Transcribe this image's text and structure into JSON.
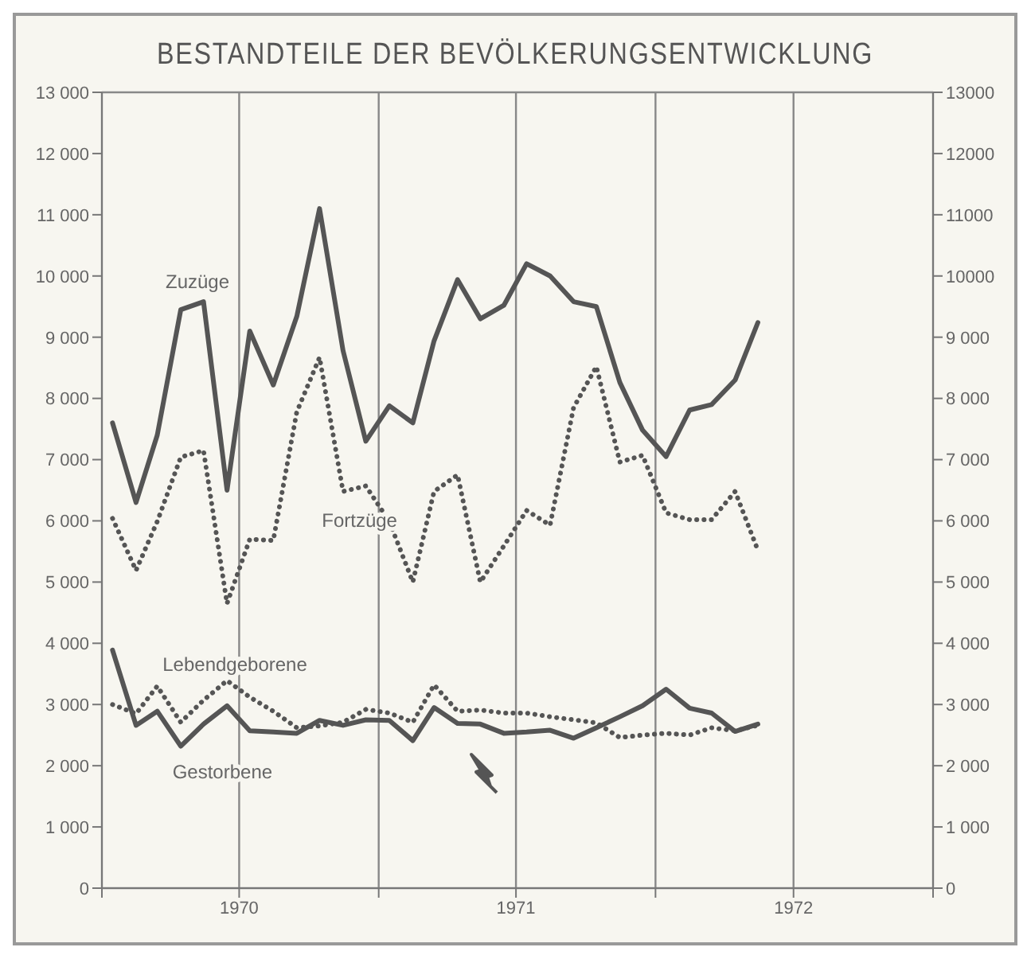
{
  "chart_data": {
    "type": "line",
    "title": "BESTANDTEILE DER BEVÖLKERUNGSENTWICKLUNG",
    "x": [
      "1970-01-15",
      "1970-02-15",
      "1970-03-15",
      "1970-04-15",
      "1970-05-15",
      "1970-06-15",
      "1970-07-15",
      "1970-08-15",
      "1970-09-15",
      "1970-10-15",
      "1970-11-15",
      "1970-12-15",
      "1971-01-15",
      "1971-02-15",
      "1971-03-15",
      "1971-04-15",
      "1971-05-15",
      "1971-06-15",
      "1971-07-15",
      "1971-08-15",
      "1971-09-15",
      "1971-10-15",
      "1971-11-15",
      "1971-12-15",
      "1972-01-15",
      "1972-02-15",
      "1972-03-15",
      "1972-04-15",
      "1972-05-15"
    ],
    "series": [
      {
        "name": "Zuzüge",
        "color": "#555555",
        "line_style": "solid",
        "values": [
          7600,
          6300,
          7400,
          9450,
          9580,
          6500,
          9100,
          8220,
          9340,
          11100,
          8780,
          7300,
          7880,
          7600,
          8940,
          9940,
          9300,
          9520,
          10200,
          10000,
          9580,
          9500,
          8260,
          7480,
          7050,
          7810,
          7900,
          8300,
          9240
        ]
      },
      {
        "name": "Fortzüge",
        "color": "#555555",
        "line_style": "dotted",
        "values": [
          6040,
          5190,
          5990,
          7040,
          7150,
          4650,
          5700,
          5680,
          7780,
          8670,
          6480,
          6570,
          5990,
          5000,
          6480,
          6750,
          5000,
          5590,
          6170,
          5930,
          7850,
          8520,
          6960,
          7070,
          6130,
          6020,
          6020,
          6480,
          5520
        ]
      },
      {
        "name": "Lebendgeborene",
        "color": "#555555",
        "line_style": "dotted",
        "values": [
          3000,
          2850,
          3300,
          2710,
          3070,
          3390,
          3120,
          2890,
          2620,
          2650,
          2710,
          2920,
          2860,
          2710,
          3320,
          2890,
          2910,
          2860,
          2860,
          2800,
          2750,
          2700,
          2460,
          2500,
          2530,
          2500,
          2620,
          2570,
          2660
        ]
      },
      {
        "name": "Gestorbene",
        "color": "#555555",
        "line_style": "solid",
        "values": [
          3890,
          2660,
          2890,
          2320,
          2680,
          2980,
          2570,
          2550,
          2530,
          2740,
          2660,
          2750,
          2740,
          2410,
          2950,
          2690,
          2680,
          2530,
          2550,
          2580,
          2450,
          2620,
          2800,
          2980,
          3250,
          2940,
          2860,
          2560,
          2680
        ]
      }
    ],
    "xlim": [
      "1970-01-01",
      "1973-01-01"
    ],
    "xticks": [
      {
        "value": "1970-01-01",
        "label": null
      },
      {
        "value": "1970-07-01",
        "label": "1970"
      },
      {
        "value": "1971-01-01",
        "label": null
      },
      {
        "value": "1971-07-01",
        "label": "1971"
      },
      {
        "value": "1972-01-01",
        "label": null
      },
      {
        "value": "1972-07-01",
        "label": "1972"
      },
      {
        "value": "1973-01-01",
        "label": null
      }
    ],
    "ylim": [
      0,
      13000
    ],
    "yticks": [
      0,
      {
        "value": 1000,
        "label": "1 000"
      },
      {
        "value": 2000,
        "label": "2 000"
      },
      {
        "value": 3000,
        "label": "3 000"
      },
      {
        "value": 4000,
        "label": "4 000"
      },
      {
        "value": 5000,
        "label": "5 000"
      },
      {
        "value": 6000,
        "label": "6 000"
      },
      {
        "value": 7000,
        "label": "7 000"
      },
      {
        "value": 8000,
        "label": "8 000"
      },
      {
        "value": 9000,
        "label": "9 000"
      },
      {
        "value": 10000,
        "label": "10 000"
      },
      {
        "value": 11000,
        "label": "11 000"
      },
      {
        "value": 12000,
        "label": "12 000"
      },
      {
        "value": 13000,
        "label": "13 000"
      }
    ],
    "y2lim": [
      0,
      13000
    ],
    "y2ticks": [
      0,
      {
        "value": 1000,
        "label": "1 000"
      },
      {
        "value": 2000,
        "label": "2 000"
      },
      {
        "value": 3000,
        "label": "3 000"
      },
      {
        "value": 4000,
        "label": "4 000"
      },
      {
        "value": 5000,
        "label": "5 000"
      },
      {
        "value": 6000,
        "label": "6 000"
      },
      {
        "value": 7000,
        "label": "7 000"
      },
      {
        "value": 8000,
        "label": "8 000"
      },
      {
        "value": 9000,
        "label": "9 000"
      },
      10000,
      11000,
      12000,
      13000
    ],
    "grid": true,
    "legend": false,
    "marker": "none"
  }
}
